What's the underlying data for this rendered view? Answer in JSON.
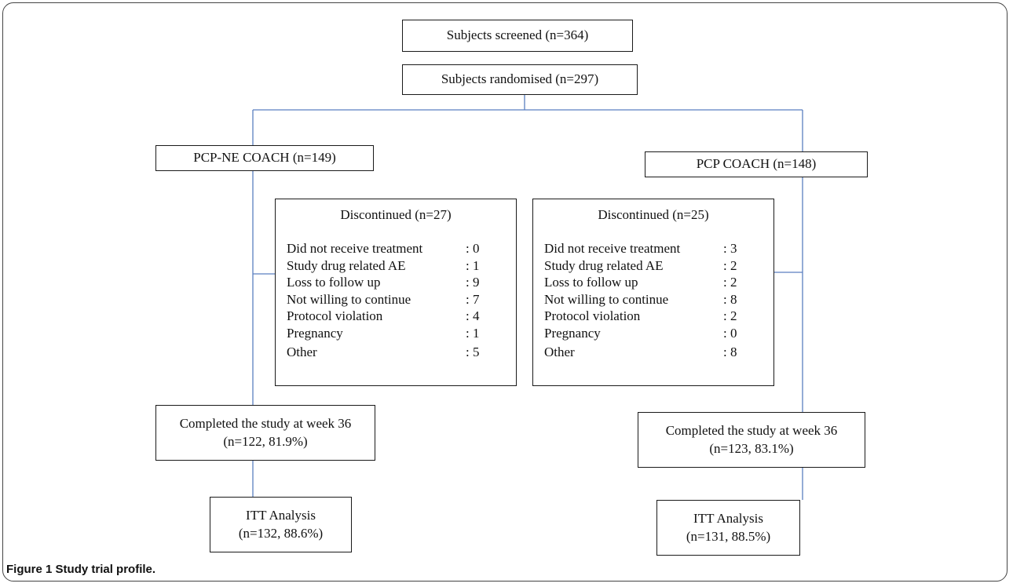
{
  "diagram": {
    "screened": "Subjects screened (n=364)",
    "randomised": "Subjects randomised (n=297)",
    "left_arm": {
      "title": "PCP-NE COACH (n=149)",
      "discontinued": {
        "title": "Discontinued (n=27)",
        "rows": [
          {
            "label": "Did not receive treatment",
            "value": ": 0"
          },
          {
            "label": "Study drug related AE",
            "value": ": 1"
          },
          {
            "label": "Loss to follow up",
            "value": ": 9"
          },
          {
            "label": "Not willing to continue",
            "value": ": 7"
          },
          {
            "label": "Protocol violation",
            "value": ": 4"
          },
          {
            "label": "Pregnancy",
            "value": ": 1"
          },
          {
            "label": "Other",
            "value": ": 5"
          }
        ]
      },
      "completed_line1": "Completed the study at week 36",
      "completed_line2": "(n=122, 81.9%)",
      "itt_line1": "ITT Analysis",
      "itt_line2": "(n=132, 88.6%)"
    },
    "right_arm": {
      "title": "PCP COACH (n=148)",
      "discontinued": {
        "title": "Discontinued (n=25)",
        "rows": [
          {
            "label": "Did not receive treatment",
            "value": ": 3"
          },
          {
            "label": "Study drug related AE",
            "value": ": 2"
          },
          {
            "label": "Loss to follow up",
            "value": ": 2"
          },
          {
            "label": "Not willing to continue",
            "value": ": 8"
          },
          {
            "label": "Protocol violation",
            "value": ": 2"
          },
          {
            "label": "Pregnancy",
            "value": ": 0"
          },
          {
            "label": "Other",
            "value": ": 8"
          }
        ]
      },
      "completed_line1": "Completed the study at week 36",
      "completed_line2": "(n=123, 83.1%)",
      "itt_line1": "ITT Analysis",
      "itt_line2": "(n=131, 88.5%)"
    }
  },
  "caption": {
    "label": "Figure 1",
    "text": "Study trial profile."
  },
  "colors": {
    "connector": "#5b7fc0",
    "border": "#1a1a1a"
  }
}
